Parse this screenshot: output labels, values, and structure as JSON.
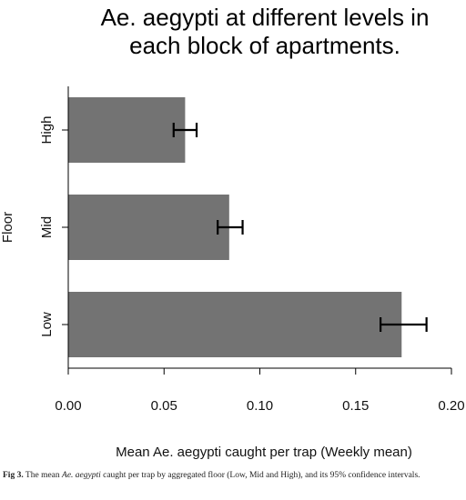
{
  "slide_title": {
    "line1": "Ae. aegypti at different levels in",
    "line2": "each block of apartments."
  },
  "caption": {
    "label": "Fig 3.",
    "text_before": "The mean",
    "species": "Ae. aegypti",
    "text_after": "caught per trap by aggregated floor (Low, Mid and High), and its 95% confidence intervals."
  },
  "colors": {
    "bar": "#737373",
    "error_bar": "#000000",
    "axis": "#000000"
  },
  "chart_data": {
    "type": "bar",
    "orientation": "horizontal",
    "title": "",
    "xlabel": "Mean Ae. aegypti caught per trap (Weekly mean)",
    "ylabel": "Floor",
    "categories": [
      "Low",
      "Mid",
      "High"
    ],
    "values": [
      0.174,
      0.084,
      0.061
    ],
    "error_low": [
      0.163,
      0.078,
      0.055
    ],
    "error_high": [
      0.187,
      0.091,
      0.067
    ],
    "xlim": [
      0,
      0.2
    ],
    "xticks": [
      "0.00",
      "0.05",
      "0.10",
      "0.15",
      "0.20"
    ],
    "grid": false,
    "legend": "none"
  }
}
